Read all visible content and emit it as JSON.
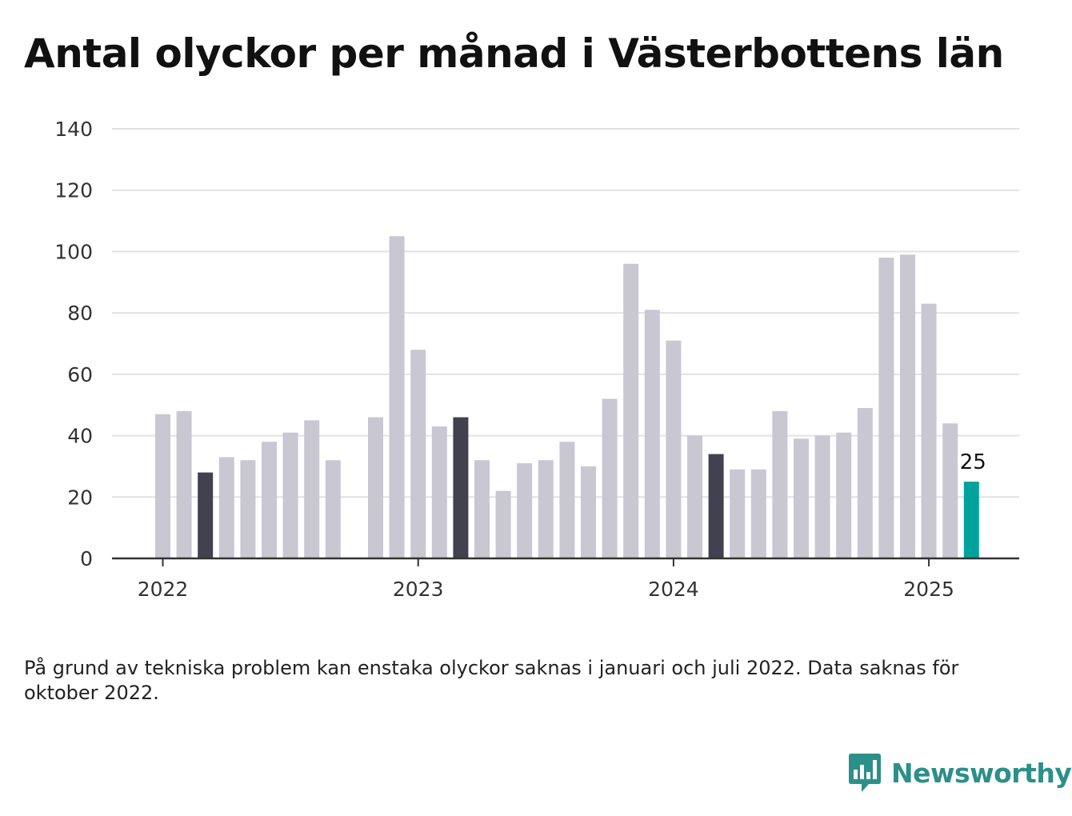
{
  "header": {
    "title": "Antal olyckor per månad i Västerbottens län"
  },
  "footer": {
    "note": "På grund av tekniska problem kan enstaka olyckor saknas i januari och juli 2022. Data saknas för oktober 2022.",
    "brand": "Newsworthy"
  },
  "colors": {
    "bar_default": "#c8c7d2",
    "bar_month_highlight": "#42414f",
    "bar_latest": "#00a39b",
    "gridline": "#e2e2e2",
    "axis": "#333333",
    "brand": "#2c8f8a"
  },
  "icons": {
    "brand": "bar-chart-speech-bubble-icon"
  },
  "chart_data": {
    "type": "bar",
    "title": "Antal olyckor per månad i Västerbottens län",
    "xlabel": "",
    "ylabel": "",
    "ylim": [
      0,
      140
    ],
    "yticks": [
      0,
      20,
      40,
      60,
      80,
      100,
      120,
      140
    ],
    "xtick_labels": [
      {
        "label": "2022",
        "month": "2022-01"
      },
      {
        "label": "2023",
        "month": "2023-01"
      },
      {
        "label": "2024",
        "month": "2024-01"
      },
      {
        "label": "2025",
        "month": "2025-01"
      }
    ],
    "grid": true,
    "legend": "none",
    "highlight_month": "March",
    "bars": [
      {
        "month": "2022-01",
        "value": 47
      },
      {
        "month": "2022-02",
        "value": 48
      },
      {
        "month": "2022-03",
        "value": 28
      },
      {
        "month": "2022-04",
        "value": 33
      },
      {
        "month": "2022-05",
        "value": 32
      },
      {
        "month": "2022-06",
        "value": 38
      },
      {
        "month": "2022-07",
        "value": 41
      },
      {
        "month": "2022-08",
        "value": 45
      },
      {
        "month": "2022-09",
        "value": 32
      },
      {
        "month": "2022-10",
        "value": null
      },
      {
        "month": "2022-11",
        "value": 46
      },
      {
        "month": "2022-12",
        "value": 105
      },
      {
        "month": "2023-01",
        "value": 68
      },
      {
        "month": "2023-02",
        "value": 43
      },
      {
        "month": "2023-03",
        "value": 46
      },
      {
        "month": "2023-04",
        "value": 32
      },
      {
        "month": "2023-05",
        "value": 22
      },
      {
        "month": "2023-06",
        "value": 31
      },
      {
        "month": "2023-07",
        "value": 32
      },
      {
        "month": "2023-08",
        "value": 38
      },
      {
        "month": "2023-09",
        "value": 30
      },
      {
        "month": "2023-10",
        "value": 52
      },
      {
        "month": "2023-11",
        "value": 96
      },
      {
        "month": "2023-12",
        "value": 81
      },
      {
        "month": "2024-01",
        "value": 71
      },
      {
        "month": "2024-02",
        "value": 40
      },
      {
        "month": "2024-03",
        "value": 34
      },
      {
        "month": "2024-04",
        "value": 29
      },
      {
        "month": "2024-05",
        "value": 29
      },
      {
        "month": "2024-06",
        "value": 48
      },
      {
        "month": "2024-07",
        "value": 39
      },
      {
        "month": "2024-08",
        "value": 40
      },
      {
        "month": "2024-09",
        "value": 41
      },
      {
        "month": "2024-10",
        "value": 49
      },
      {
        "month": "2024-11",
        "value": 98
      },
      {
        "month": "2024-12",
        "value": 99
      },
      {
        "month": "2025-01",
        "value": 83
      },
      {
        "month": "2025-02",
        "value": 44
      },
      {
        "month": "2025-03",
        "value": 25
      }
    ],
    "annotations": [
      {
        "month": "2025-03",
        "text": "25"
      }
    ]
  }
}
